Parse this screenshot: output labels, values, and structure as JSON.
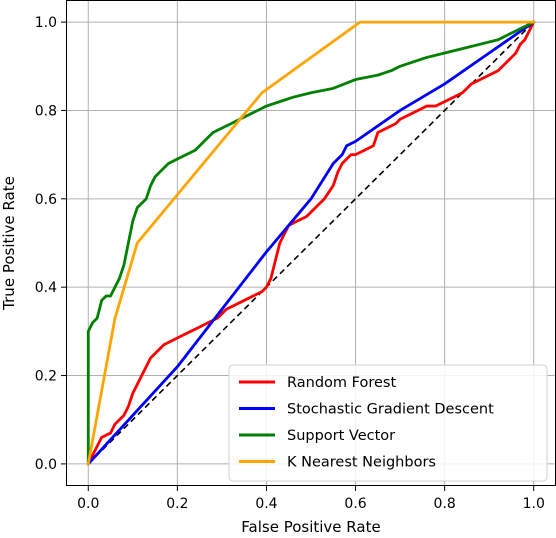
{
  "chart_data": {
    "type": "line",
    "title": "",
    "xlabel": "False Positive Rate",
    "ylabel": "True Positive Rate",
    "xlim": [
      -0.05,
      1.05
    ],
    "ylim": [
      -0.05,
      1.05
    ],
    "xticks": [
      "0.0",
      "0.2",
      "0.4",
      "0.6",
      "0.8",
      "1.0"
    ],
    "yticks": [
      "0.0",
      "0.2",
      "0.4",
      "0.6",
      "0.8",
      "1.0"
    ],
    "xtick_values": [
      0,
      0.2,
      0.4,
      0.6,
      0.8,
      1.0
    ],
    "ytick_values": [
      0,
      0.2,
      0.4,
      0.6,
      0.8,
      1.0
    ],
    "grid": true,
    "legend_position": "bottom-right",
    "reference_line": {
      "x": [
        0,
        1
      ],
      "y": [
        0,
        1
      ],
      "color": "#000000",
      "style": "dashed"
    },
    "series": [
      {
        "name": "Random Forest",
        "color": "#ff0000",
        "x": [
          0.0,
          0.01,
          0.02,
          0.03,
          0.05,
          0.06,
          0.07,
          0.08,
          0.09,
          0.1,
          0.11,
          0.12,
          0.13,
          0.14,
          0.15,
          0.17,
          0.19,
          0.21,
          0.23,
          0.25,
          0.27,
          0.29,
          0.31,
          0.33,
          0.35,
          0.37,
          0.39,
          0.4,
          0.41,
          0.42,
          0.43,
          0.45,
          0.47,
          0.49,
          0.5,
          0.51,
          0.53,
          0.55,
          0.56,
          0.57,
          0.58,
          0.59,
          0.6,
          0.62,
          0.64,
          0.65,
          0.67,
          0.69,
          0.7,
          0.72,
          0.74,
          0.76,
          0.78,
          0.8,
          0.82,
          0.84,
          0.86,
          0.88,
          0.9,
          0.92,
          0.94,
          0.95,
          0.96,
          0.97,
          0.98,
          0.99,
          1.0
        ],
        "y": [
          0.0,
          0.02,
          0.04,
          0.06,
          0.07,
          0.09,
          0.1,
          0.11,
          0.13,
          0.16,
          0.18,
          0.2,
          0.22,
          0.24,
          0.25,
          0.27,
          0.28,
          0.29,
          0.3,
          0.31,
          0.32,
          0.33,
          0.35,
          0.36,
          0.37,
          0.38,
          0.39,
          0.4,
          0.42,
          0.46,
          0.5,
          0.54,
          0.55,
          0.56,
          0.57,
          0.58,
          0.6,
          0.63,
          0.66,
          0.68,
          0.69,
          0.7,
          0.7,
          0.71,
          0.72,
          0.75,
          0.76,
          0.77,
          0.78,
          0.79,
          0.8,
          0.81,
          0.81,
          0.82,
          0.83,
          0.84,
          0.86,
          0.87,
          0.88,
          0.89,
          0.91,
          0.92,
          0.93,
          0.95,
          0.96,
          0.98,
          1.0
        ]
      },
      {
        "name": "Stochastic Gradient Descent",
        "color": "#0000ff",
        "x": [
          0.0,
          0.1,
          0.2,
          0.3,
          0.4,
          0.5,
          0.55,
          0.57,
          0.58,
          0.6,
          0.7,
          0.8,
          0.9,
          1.0
        ],
        "y": [
          0.0,
          0.11,
          0.22,
          0.35,
          0.48,
          0.6,
          0.68,
          0.7,
          0.72,
          0.73,
          0.8,
          0.86,
          0.93,
          1.0
        ]
      },
      {
        "name": "Support Vector",
        "color": "#008000",
        "x": [
          0.0,
          0.0,
          0.01,
          0.02,
          0.03,
          0.04,
          0.05,
          0.06,
          0.07,
          0.08,
          0.09,
          0.1,
          0.11,
          0.12,
          0.13,
          0.14,
          0.15,
          0.16,
          0.17,
          0.18,
          0.2,
          0.22,
          0.24,
          0.26,
          0.28,
          0.3,
          0.32,
          0.34,
          0.36,
          0.38,
          0.4,
          0.43,
          0.46,
          0.5,
          0.55,
          0.6,
          0.65,
          0.68,
          0.7,
          0.73,
          0.76,
          0.8,
          0.84,
          0.88,
          0.92,
          0.96,
          1.0
        ],
        "y": [
          0.0,
          0.3,
          0.32,
          0.33,
          0.37,
          0.38,
          0.38,
          0.4,
          0.42,
          0.45,
          0.5,
          0.55,
          0.58,
          0.59,
          0.6,
          0.63,
          0.65,
          0.66,
          0.67,
          0.68,
          0.69,
          0.7,
          0.71,
          0.73,
          0.75,
          0.76,
          0.77,
          0.78,
          0.79,
          0.8,
          0.81,
          0.82,
          0.83,
          0.84,
          0.85,
          0.87,
          0.88,
          0.89,
          0.9,
          0.91,
          0.92,
          0.93,
          0.94,
          0.95,
          0.96,
          0.98,
          1.0
        ]
      },
      {
        "name": "K Nearest Neighbors",
        "color": "#ffa500",
        "x": [
          0.0,
          0.06,
          0.11,
          0.39,
          0.61,
          1.0
        ],
        "y": [
          0.0,
          0.33,
          0.5,
          0.84,
          1.0,
          1.0
        ]
      }
    ]
  }
}
